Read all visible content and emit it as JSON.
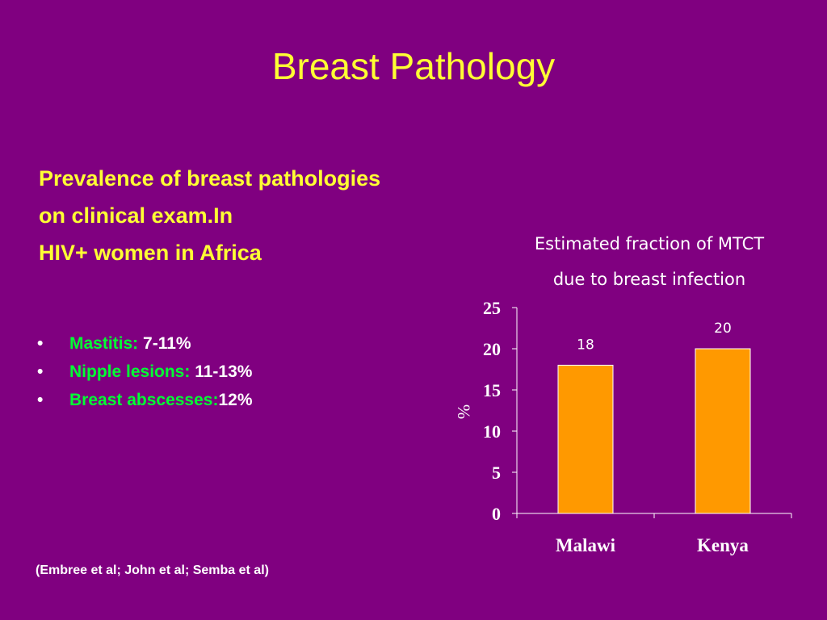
{
  "slide": {
    "title": "Breast Pathology",
    "heading_lines": [
      "Prevalence of breast pathologies",
      "on clinical exam.In",
      "HIV+ women in Africa"
    ],
    "bullets": [
      {
        "label": "Mastitis: ",
        "value": "7-11%"
      },
      {
        "label": "Nipple lesions: ",
        "value": "11-13%"
      },
      {
        "label": "Breast abscesses:",
        "value": "12%"
      }
    ],
    "bullet_symbol": "•",
    "citation": {
      "open": "(",
      "text": "Embree et al; John et al; Semba et al)"
    }
  },
  "colors": {
    "background": "#800080",
    "title": "#FFFF33",
    "bullet_label": "#00FF33",
    "text": "#FFFFFF",
    "bar": "#FF9900"
  },
  "chart_data": {
    "type": "bar",
    "title_lines": [
      "Estimated fraction of MTCT",
      "due to breast infection"
    ],
    "categories": [
      "Malawi",
      "Kenya"
    ],
    "values": [
      18,
      20
    ],
    "data_labels": [
      "18",
      "20"
    ],
    "ylabel": "%",
    "xlabel": "",
    "ylim": [
      0,
      25
    ],
    "yticks": [
      0,
      5,
      10,
      15,
      20,
      25
    ],
    "grid": false,
    "legend": "none"
  }
}
